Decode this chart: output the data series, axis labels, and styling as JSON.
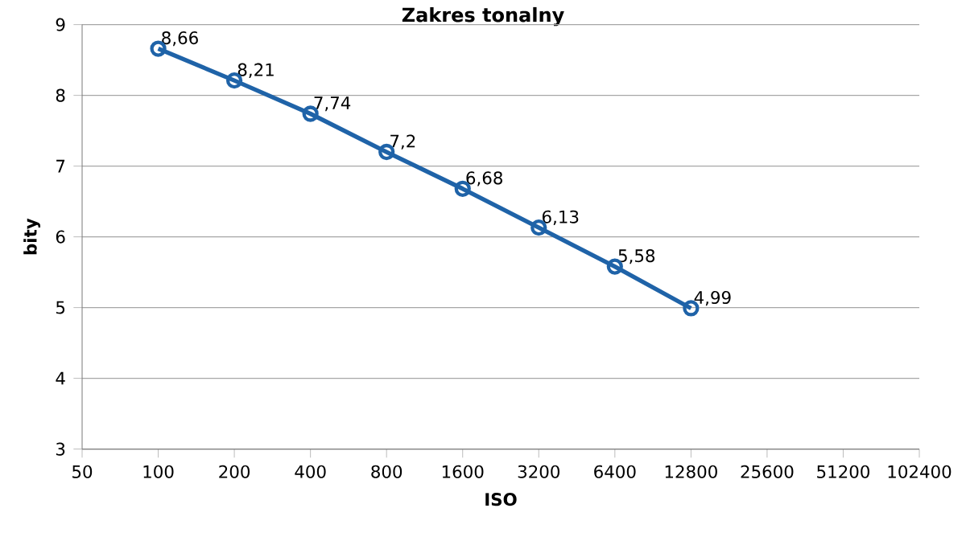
{
  "chart_data": {
    "type": "line",
    "title": "Zakres tonalny",
    "xlabel": "ISO",
    "ylabel": "bity",
    "x": [
      100,
      200,
      400,
      800,
      1600,
      3200,
      6400,
      12800
    ],
    "values": [
      8.66,
      8.21,
      7.74,
      7.2,
      6.68,
      6.13,
      5.58,
      4.99
    ],
    "value_labels": [
      "8,66",
      "8,21",
      "7,74",
      "7,2",
      "6,68",
      "6,13",
      "5,58",
      "4,99"
    ],
    "color": "#1f63a8",
    "marker": "circle",
    "line_style": "solid",
    "log": "x",
    "grid": "y",
    "xlim": [
      50,
      102400
    ],
    "xticks": [
      50,
      100,
      200,
      400,
      800,
      1600,
      3200,
      6400,
      12800,
      25600,
      51200,
      102400
    ],
    "ylim": [
      3,
      9
    ],
    "yticks": [
      3,
      4,
      5,
      6,
      7,
      8,
      9
    ]
  }
}
